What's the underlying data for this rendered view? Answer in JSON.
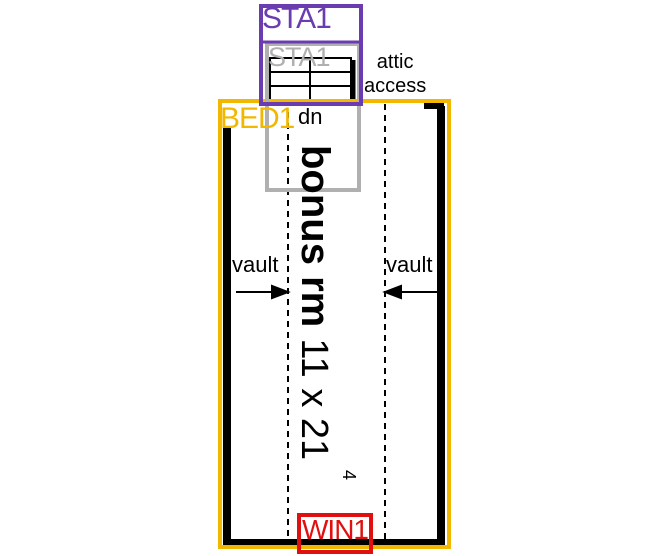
{
  "labels": {
    "stair_outer": "STA1",
    "stair_inner": "STA1",
    "attic_line1": "attic",
    "attic_line2": "access",
    "bedroom": "BED1",
    "stair_direction": "dn",
    "vault_left": "vault",
    "vault_right": "vault",
    "room_name": "bonus rm",
    "room_dims": "11 x 21",
    "room_dims_sup": "4",
    "window": "WIN1"
  },
  "colors": {
    "stair_box": "#6a3cb0",
    "stair_inner_box": "#b0b0b0",
    "bedroom_box": "#f2b800",
    "window_box": "#e01010",
    "walls": "#000000"
  }
}
